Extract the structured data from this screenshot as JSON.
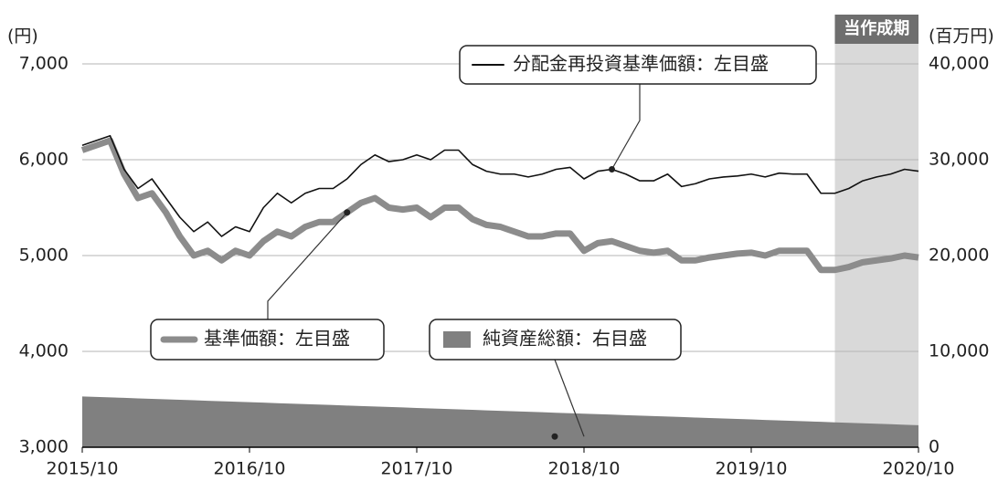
{
  "chart_data": {
    "type": "line",
    "ylabel": "(円)",
    "y2label": "(百万円)",
    "x": [
      "2015/10",
      "2015/11",
      "2015/12",
      "2016/01",
      "2016/02",
      "2016/03",
      "2016/04",
      "2016/05",
      "2016/06",
      "2016/07",
      "2016/08",
      "2016/09",
      "2016/10",
      "2016/11",
      "2016/12",
      "2017/01",
      "2017/02",
      "2017/03",
      "2017/04",
      "2017/05",
      "2017/06",
      "2017/07",
      "2017/08",
      "2017/09",
      "2017/10",
      "2017/11",
      "2017/12",
      "2018/01",
      "2018/02",
      "2018/03",
      "2018/04",
      "2018/05",
      "2018/06",
      "2018/07",
      "2018/08",
      "2018/09",
      "2018/10",
      "2018/11",
      "2018/12",
      "2019/01",
      "2019/02",
      "2019/03",
      "2019/04",
      "2019/05",
      "2019/06",
      "2019/07",
      "2019/08",
      "2019/09",
      "2019/10",
      "2019/11",
      "2019/12",
      "2020/01",
      "2020/02",
      "2020/03",
      "2020/04",
      "2020/05",
      "2020/06",
      "2020/07",
      "2020/08",
      "2020/09",
      "2020/10"
    ],
    "xticks": [
      "2015/10",
      "2016/10",
      "2017/10",
      "2018/10",
      "2019/10",
      "2020/10"
    ],
    "ylim": [
      3000,
      7000
    ],
    "yticks": [
      {
        "value": 3000,
        "label": "3,000"
      },
      {
        "value": 4000,
        "label": "4,000"
      },
      {
        "value": 5000,
        "label": "5,000"
      },
      {
        "value": 6000,
        "label": "6,000"
      },
      {
        "value": 7000,
        "label": "7,000"
      }
    ],
    "y2lim": [
      0,
      40000
    ],
    "y2ticks": [
      0,
      {
        "value": 10000,
        "label": "10,000"
      },
      {
        "value": 20000,
        "label": "20,000"
      },
      {
        "value": 30000,
        "label": "30,000"
      },
      {
        "value": 40000,
        "label": "40,000"
      }
    ],
    "grid": true,
    "highlight": {
      "label": "当作成期",
      "start": "2020/04",
      "end": "2020/10"
    },
    "series": [
      {
        "name": "分配金再投資基準価額：左目盛",
        "type": "line",
        "color": "#111111",
        "values": [
          6150,
          6200,
          6250,
          5900,
          5700,
          5800,
          5600,
          5400,
          5250,
          5350,
          5200,
          5300,
          5250,
          5500,
          5650,
          5550,
          5650,
          5700,
          5700,
          5800,
          5950,
          6050,
          5980,
          6000,
          6050,
          6000,
          6100,
          6100,
          5950,
          5880,
          5850,
          5850,
          5820,
          5850,
          5900,
          5920,
          5800,
          5880,
          5900,
          5850,
          5780,
          5780,
          5850,
          5720,
          5750,
          5800,
          5820,
          5830,
          5850,
          5820,
          5860,
          5850,
          5850,
          5650,
          5650,
          5700,
          5780,
          5820,
          5850,
          5900,
          5880
        ]
      },
      {
        "name": "基準価額：左目盛",
        "type": "line",
        "color": "#8c8c8c",
        "values": [
          6100,
          6150,
          6200,
          5850,
          5600,
          5650,
          5450,
          5200,
          5000,
          5050,
          4950,
          5050,
          5000,
          5150,
          5250,
          5200,
          5300,
          5350,
          5350,
          5450,
          5550,
          5600,
          5500,
          5480,
          5500,
          5400,
          5500,
          5500,
          5380,
          5320,
          5300,
          5250,
          5200,
          5200,
          5230,
          5230,
          5050,
          5130,
          5150,
          5100,
          5050,
          5030,
          5050,
          4950,
          4950,
          4980,
          5000,
          5020,
          5030,
          5000,
          5050,
          5050,
          5050,
          4850,
          4850,
          4880,
          4930,
          4950,
          4970,
          5000,
          4980
        ]
      },
      {
        "name": "純資産総額：右目盛",
        "type": "area",
        "axis": "y2",
        "color": "#808080",
        "values": [
          5300,
          5250,
          5200,
          5150,
          5100,
          5050,
          5000,
          4950,
          4900,
          4850,
          4800,
          4750,
          4700,
          4650,
          4600,
          4550,
          4500,
          4450,
          4400,
          4350,
          4300,
          4250,
          4200,
          4150,
          4100,
          4050,
          4000,
          3950,
          3900,
          3850,
          3800,
          3750,
          3700,
          3650,
          3600,
          3550,
          3500,
          3450,
          3400,
          3350,
          3300,
          3250,
          3200,
          3150,
          3100,
          3050,
          3000,
          2950,
          2900,
          2850,
          2800,
          2750,
          2700,
          2650,
          2600,
          2550,
          2500,
          2450,
          2400,
          2350,
          2300
        ]
      }
    ]
  }
}
